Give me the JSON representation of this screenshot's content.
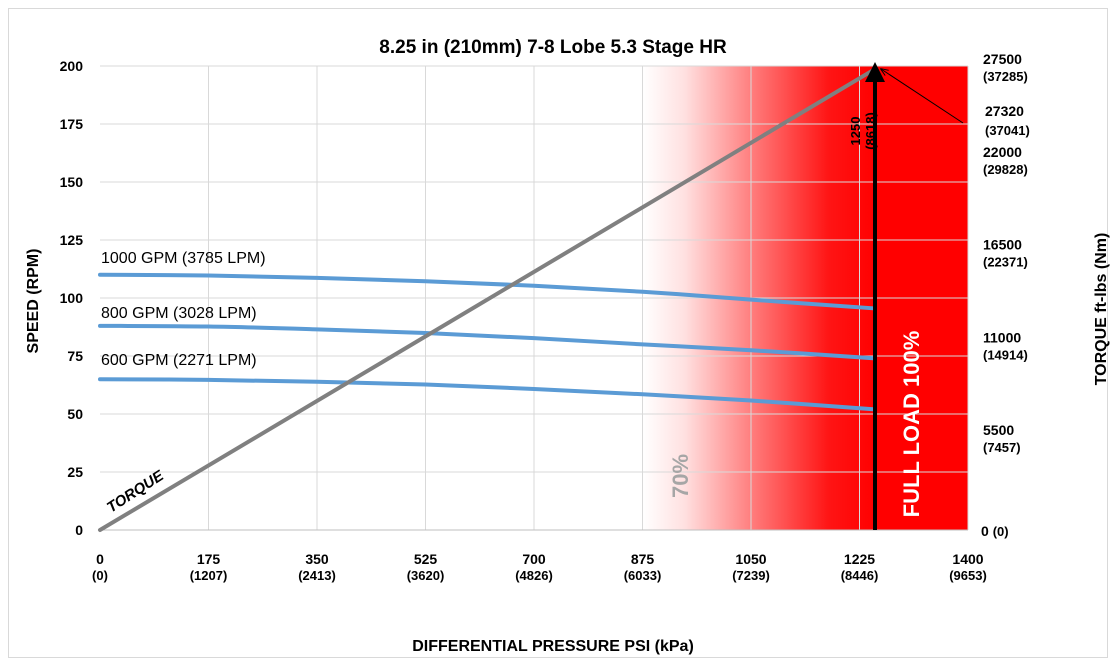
{
  "chart_data": {
    "type": "line",
    "title": "8.25 in (210mm) 7-8 Lobe 5.3 Stage HR",
    "xlabel": "DIFFERENTIAL PRESSURE PSI (kPa)",
    "ylabel": "SPEED (RPM)",
    "y2label": "TORQUE ft-lbs (Nm)",
    "xlim": [
      0,
      1400
    ],
    "ylim": [
      0,
      200
    ],
    "y2lim": [
      0,
      27500
    ],
    "x_ticks": [
      {
        "value": 0,
        "psi": "0",
        "kpa": "(0)"
      },
      {
        "value": 175,
        "psi": "175",
        "kpa": "(1207)"
      },
      {
        "value": 350,
        "psi": "350",
        "kpa": "(2413)"
      },
      {
        "value": 525,
        "psi": "525",
        "kpa": "(3620)"
      },
      {
        "value": 700,
        "psi": "700",
        "kpa": "(4826)"
      },
      {
        "value": 875,
        "psi": "875",
        "kpa": "(6033)"
      },
      {
        "value": 1050,
        "psi": "1050",
        "kpa": "(7239)"
      },
      {
        "value": 1225,
        "psi": "1225",
        "kpa": "(8446)"
      },
      {
        "value": 1400,
        "psi": "1400",
        "kpa": "(9653)"
      }
    ],
    "y_ticks": [
      0,
      25,
      50,
      75,
      100,
      125,
      150,
      175,
      200
    ],
    "y2_ticks": [
      {
        "value": 0,
        "label": "0",
        "sub": "(0)"
      },
      {
        "value": 5500,
        "label": "5500",
        "sub": "(7457)"
      },
      {
        "value": 11000,
        "label": "11000",
        "sub": "(14914)"
      },
      {
        "value": 16500,
        "label": "16500",
        "sub": "(22371)"
      },
      {
        "value": 22000,
        "label": "22000",
        "sub": "(29828)"
      },
      {
        "value": 27500,
        "label": "27500",
        "sub": "(37285)"
      }
    ],
    "series": [
      {
        "name": "1000 GPM (3785 LPM)",
        "color": "#5b9bd5",
        "x": [
          0,
          175,
          350,
          525,
          700,
          875,
          1050,
          1250
        ],
        "y": [
          110,
          109.7,
          108.7,
          107.2,
          105.3,
          102.7,
          99.3,
          95.5
        ]
      },
      {
        "name": "800 GPM (3028 LPM)",
        "color": "#5b9bd5",
        "x": [
          0,
          175,
          350,
          525,
          700,
          875,
          1050,
          1250
        ],
        "y": [
          88,
          87.7,
          86.5,
          84.9,
          82.7,
          80,
          77.5,
          74
        ]
      },
      {
        "name": "600 GPM (2271 LPM)",
        "color": "#5b9bd5",
        "x": [
          0,
          175,
          350,
          525,
          700,
          875,
          1050,
          1250
        ],
        "y": [
          65,
          64.7,
          63.9,
          62.7,
          60.8,
          58.5,
          55.8,
          52
        ]
      },
      {
        "name": "TORQUE",
        "color": "#808080",
        "x": [
          0,
          1250
        ],
        "y2": [
          0,
          27320
        ]
      }
    ],
    "zones": [
      {
        "label": "70%",
        "from": 875,
        "to": 1250,
        "style": "gradient"
      },
      {
        "label": "FULL LOAD 100%",
        "from": 1250,
        "to": 1400,
        "style": "solid"
      }
    ],
    "full_load_line": {
      "x": 1250
    },
    "annotations": [
      {
        "text": "1250",
        "sub": "(8618)"
      },
      {
        "text": "27320",
        "sub": "(37041)"
      }
    ],
    "colors": {
      "curve": "#5b9bd5",
      "torque": "#808080",
      "zone": "#ff0000",
      "grid": "#d9d9d9"
    }
  }
}
